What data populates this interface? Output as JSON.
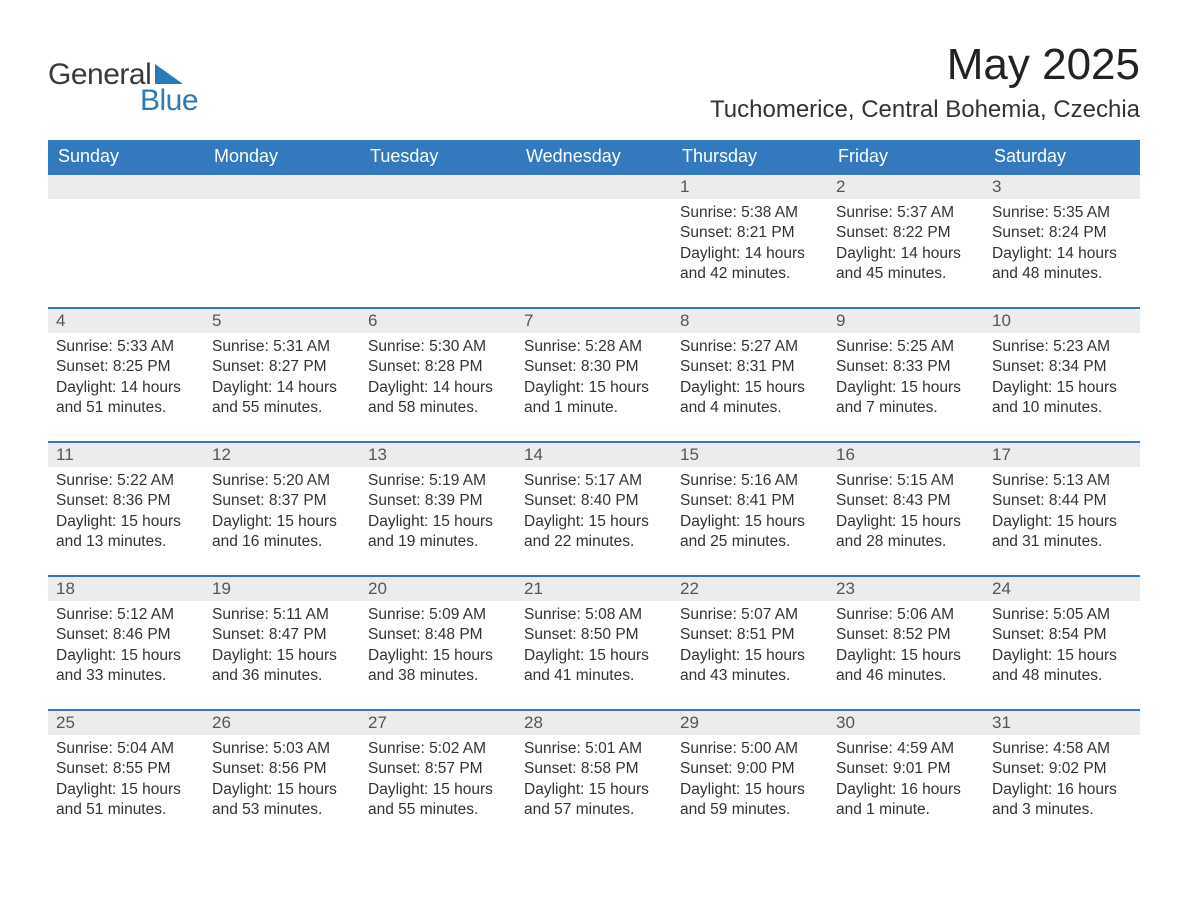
{
  "brand": {
    "word1": "General",
    "word2": "Blue",
    "accent_color": "#2a7ab8",
    "text_color": "#3a3a3a"
  },
  "title": {
    "month": "May 2025",
    "location": "Tuchomerice, Central Bohemia, Czechia",
    "month_fontsize": 44,
    "location_fontsize": 24
  },
  "colors": {
    "header_bg": "#3279bd",
    "header_text": "#ffffff",
    "band_bg": "#ececec",
    "week_divider": "#3279bd",
    "body_text": "#333333",
    "background": "#ffffff"
  },
  "weekdays": [
    "Sunday",
    "Monday",
    "Tuesday",
    "Wednesday",
    "Thursday",
    "Friday",
    "Saturday"
  ],
  "weeks": [
    [
      null,
      null,
      null,
      null,
      {
        "n": "1",
        "sunrise": "Sunrise: 5:38 AM",
        "sunset": "Sunset: 8:21 PM",
        "daylight": "Daylight: 14 hours and 42 minutes."
      },
      {
        "n": "2",
        "sunrise": "Sunrise: 5:37 AM",
        "sunset": "Sunset: 8:22 PM",
        "daylight": "Daylight: 14 hours and 45 minutes."
      },
      {
        "n": "3",
        "sunrise": "Sunrise: 5:35 AM",
        "sunset": "Sunset: 8:24 PM",
        "daylight": "Daylight: 14 hours and 48 minutes."
      }
    ],
    [
      {
        "n": "4",
        "sunrise": "Sunrise: 5:33 AM",
        "sunset": "Sunset: 8:25 PM",
        "daylight": "Daylight: 14 hours and 51 minutes."
      },
      {
        "n": "5",
        "sunrise": "Sunrise: 5:31 AM",
        "sunset": "Sunset: 8:27 PM",
        "daylight": "Daylight: 14 hours and 55 minutes."
      },
      {
        "n": "6",
        "sunrise": "Sunrise: 5:30 AM",
        "sunset": "Sunset: 8:28 PM",
        "daylight": "Daylight: 14 hours and 58 minutes."
      },
      {
        "n": "7",
        "sunrise": "Sunrise: 5:28 AM",
        "sunset": "Sunset: 8:30 PM",
        "daylight": "Daylight: 15 hours and 1 minute."
      },
      {
        "n": "8",
        "sunrise": "Sunrise: 5:27 AM",
        "sunset": "Sunset: 8:31 PM",
        "daylight": "Daylight: 15 hours and 4 minutes."
      },
      {
        "n": "9",
        "sunrise": "Sunrise: 5:25 AM",
        "sunset": "Sunset: 8:33 PM",
        "daylight": "Daylight: 15 hours and 7 minutes."
      },
      {
        "n": "10",
        "sunrise": "Sunrise: 5:23 AM",
        "sunset": "Sunset: 8:34 PM",
        "daylight": "Daylight: 15 hours and 10 minutes."
      }
    ],
    [
      {
        "n": "11",
        "sunrise": "Sunrise: 5:22 AM",
        "sunset": "Sunset: 8:36 PM",
        "daylight": "Daylight: 15 hours and 13 minutes."
      },
      {
        "n": "12",
        "sunrise": "Sunrise: 5:20 AM",
        "sunset": "Sunset: 8:37 PM",
        "daylight": "Daylight: 15 hours and 16 minutes."
      },
      {
        "n": "13",
        "sunrise": "Sunrise: 5:19 AM",
        "sunset": "Sunset: 8:39 PM",
        "daylight": "Daylight: 15 hours and 19 minutes."
      },
      {
        "n": "14",
        "sunrise": "Sunrise: 5:17 AM",
        "sunset": "Sunset: 8:40 PM",
        "daylight": "Daylight: 15 hours and 22 minutes."
      },
      {
        "n": "15",
        "sunrise": "Sunrise: 5:16 AM",
        "sunset": "Sunset: 8:41 PM",
        "daylight": "Daylight: 15 hours and 25 minutes."
      },
      {
        "n": "16",
        "sunrise": "Sunrise: 5:15 AM",
        "sunset": "Sunset: 8:43 PM",
        "daylight": "Daylight: 15 hours and 28 minutes."
      },
      {
        "n": "17",
        "sunrise": "Sunrise: 5:13 AM",
        "sunset": "Sunset: 8:44 PM",
        "daylight": "Daylight: 15 hours and 31 minutes."
      }
    ],
    [
      {
        "n": "18",
        "sunrise": "Sunrise: 5:12 AM",
        "sunset": "Sunset: 8:46 PM",
        "daylight": "Daylight: 15 hours and 33 minutes."
      },
      {
        "n": "19",
        "sunrise": "Sunrise: 5:11 AM",
        "sunset": "Sunset: 8:47 PM",
        "daylight": "Daylight: 15 hours and 36 minutes."
      },
      {
        "n": "20",
        "sunrise": "Sunrise: 5:09 AM",
        "sunset": "Sunset: 8:48 PM",
        "daylight": "Daylight: 15 hours and 38 minutes."
      },
      {
        "n": "21",
        "sunrise": "Sunrise: 5:08 AM",
        "sunset": "Sunset: 8:50 PM",
        "daylight": "Daylight: 15 hours and 41 minutes."
      },
      {
        "n": "22",
        "sunrise": "Sunrise: 5:07 AM",
        "sunset": "Sunset: 8:51 PM",
        "daylight": "Daylight: 15 hours and 43 minutes."
      },
      {
        "n": "23",
        "sunrise": "Sunrise: 5:06 AM",
        "sunset": "Sunset: 8:52 PM",
        "daylight": "Daylight: 15 hours and 46 minutes."
      },
      {
        "n": "24",
        "sunrise": "Sunrise: 5:05 AM",
        "sunset": "Sunset: 8:54 PM",
        "daylight": "Daylight: 15 hours and 48 minutes."
      }
    ],
    [
      {
        "n": "25",
        "sunrise": "Sunrise: 5:04 AM",
        "sunset": "Sunset: 8:55 PM",
        "daylight": "Daylight: 15 hours and 51 minutes."
      },
      {
        "n": "26",
        "sunrise": "Sunrise: 5:03 AM",
        "sunset": "Sunset: 8:56 PM",
        "daylight": "Daylight: 15 hours and 53 minutes."
      },
      {
        "n": "27",
        "sunrise": "Sunrise: 5:02 AM",
        "sunset": "Sunset: 8:57 PM",
        "daylight": "Daylight: 15 hours and 55 minutes."
      },
      {
        "n": "28",
        "sunrise": "Sunrise: 5:01 AM",
        "sunset": "Sunset: 8:58 PM",
        "daylight": "Daylight: 15 hours and 57 minutes."
      },
      {
        "n": "29",
        "sunrise": "Sunrise: 5:00 AM",
        "sunset": "Sunset: 9:00 PM",
        "daylight": "Daylight: 15 hours and 59 minutes."
      },
      {
        "n": "30",
        "sunrise": "Sunrise: 4:59 AM",
        "sunset": "Sunset: 9:01 PM",
        "daylight": "Daylight: 16 hours and 1 minute."
      },
      {
        "n": "31",
        "sunrise": "Sunrise: 4:58 AM",
        "sunset": "Sunset: 9:02 PM",
        "daylight": "Daylight: 16 hours and 3 minutes."
      }
    ]
  ]
}
